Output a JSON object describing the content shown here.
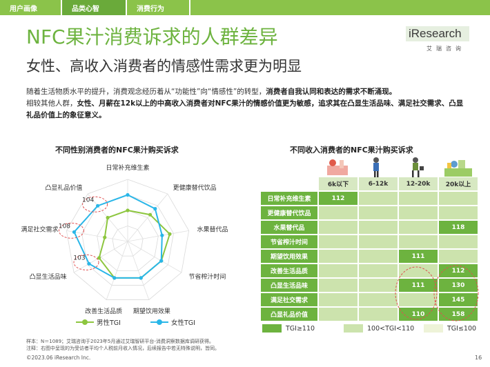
{
  "nav": {
    "tabs": [
      "用户画像",
      "品类心智",
      "消费行为"
    ],
    "active_index": 1
  },
  "header": {
    "title": "NFC果汁消费诉求的人群差异",
    "subtitle": "女性、高收入消费者的情感性需求更为明显",
    "logo_text": "iResearch",
    "logo_cn": "艾瑞咨询"
  },
  "intro": {
    "p1": "随着生活物质水平的提升，消费观念经历着从“功能性”向“情感性”的转型，",
    "p1_bold": "消费者自我认同和表达的需求不断涌现。",
    "p2": "相较其他人群，",
    "p2_bold": "女性、月薪在12k以上的中高收入消费者对NFC果汁的情感价值更为敏感，追求其在凸显生活品味、满足社交需求、凸显礼品价值上的象征意义。"
  },
  "colors": {
    "brand_green": "#6db33f",
    "male_series": "#8dc63f",
    "female_series": "#29b6e8",
    "highlight_circle": "#e05050"
  },
  "chart_data": [
    {
      "type": "radar",
      "title": "不同性别消费者的NFC果汁购买诉求",
      "axes": [
        "日常补充维生素",
        "更健康替代饮品",
        "水果替代品",
        "节省榨汁时间",
        "期望饮用效果",
        "改善生活品质",
        "凸显生活品味",
        "满足社交需求",
        "凸显礼品价值"
      ],
      "series": [
        {
          "name": "男性TGI",
          "values": [
            96,
            98,
            102,
            100,
            100,
            100,
            97,
            92,
            96
          ]
        },
        {
          "name": "女性TGI",
          "values": [
            104,
            102,
            98,
            100,
            100,
            100,
            103,
            108,
            104
          ]
        }
      ],
      "annotations": [
        {
          "axis": "凸显礼品价值",
          "label": "104"
        },
        {
          "axis": "满足社交需求",
          "label": "108"
        },
        {
          "axis": "凸显生活品味",
          "label": "103"
        }
      ],
      "legend": [
        "男性TGI",
        "女性TGI"
      ],
      "legend_position": "bottom"
    },
    {
      "type": "table",
      "title": "不同收入消费者的NFC果汁购买诉求",
      "columns": [
        "6k以下",
        "6-12k",
        "12-20k",
        "20k以上"
      ],
      "rows": [
        {
          "label": "日常补充维生素",
          "levels": [
            "hi",
            "mid",
            "mid",
            "mid"
          ],
          "values": [
            "112",
            "",
            "",
            ""
          ]
        },
        {
          "label": "更健康替代饮品",
          "levels": [
            "mid",
            "mid",
            "mid",
            "mid"
          ],
          "values": [
            "",
            "",
            "",
            ""
          ]
        },
        {
          "label": "水果替代品",
          "levels": [
            "mid",
            "mid",
            "mid",
            "hi"
          ],
          "values": [
            "",
            "",
            "",
            "118"
          ]
        },
        {
          "label": "节省榨汁时间",
          "levels": [
            "mid",
            "mid",
            "mid",
            "mid"
          ],
          "values": [
            "",
            "",
            "",
            ""
          ]
        },
        {
          "label": "期望饮用效果",
          "levels": [
            "mid",
            "mid",
            "hi",
            "mid"
          ],
          "values": [
            "",
            "",
            "111",
            ""
          ]
        },
        {
          "label": "改善生活品质",
          "levels": [
            "mid",
            "mid",
            "mid",
            "hi"
          ],
          "values": [
            "",
            "",
            "",
            "112"
          ]
        },
        {
          "label": "凸显生活品味",
          "levels": [
            "mid",
            "mid",
            "hi",
            "hi"
          ],
          "values": [
            "",
            "",
            "111",
            "130"
          ]
        },
        {
          "label": "满足社交需求",
          "levels": [
            "mid",
            "mid",
            "mid",
            "hi"
          ],
          "values": [
            "",
            "",
            "",
            "145"
          ]
        },
        {
          "label": "凸显礼品价值",
          "levels": [
            "mid",
            "mid",
            "hi",
            "hi"
          ],
          "values": [
            "",
            "",
            "110",
            "158"
          ]
        }
      ],
      "legend": [
        "TGI≥110",
        "100<TGI<110",
        "TGI≤100"
      ]
    }
  ],
  "footer": {
    "note1": "样本：N＝1089；艾瑞咨询于2023年5月通过艾瑞智研平台-消费洞察数据库调研获得。",
    "note2": "注释：右图中呈现的为受访者平均个人税前月收入情况，后续报告中若无特殊说明，皆同。",
    "copyright": "©2023.06 iResearch Inc.",
    "page": "16"
  }
}
